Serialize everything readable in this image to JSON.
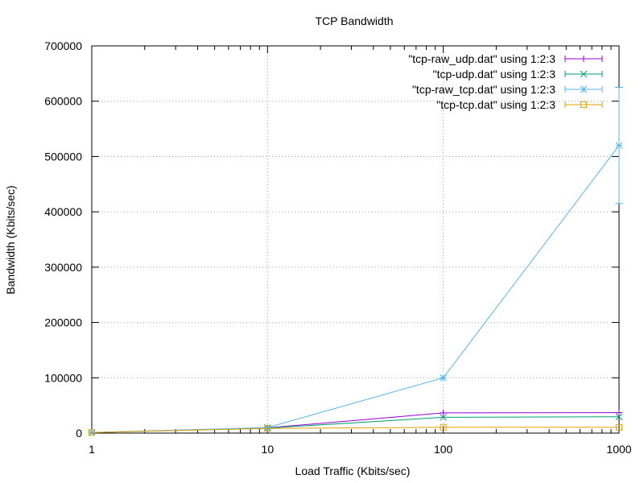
{
  "chart_data": {
    "type": "line",
    "title": "TCP Bandwidth",
    "xlabel": "Load Traffic (Kbits/sec)",
    "ylabel": "Bandwidth (Kbits/sec)",
    "xscale": "log",
    "xlim": [
      1,
      1000
    ],
    "ylim": [
      0,
      700000
    ],
    "xticks": [
      1,
      10,
      100,
      1000
    ],
    "xtick_labels": [
      "1",
      "10",
      "100",
      "1000"
    ],
    "yticks": [
      0,
      100000,
      200000,
      300000,
      400000,
      500000,
      600000,
      700000
    ],
    "ytick_labels": [
      "0",
      "100000",
      "200000",
      "300000",
      "400000",
      "500000",
      "600000",
      "700000"
    ],
    "grid": true,
    "legend_position": "top-right",
    "series": [
      {
        "name": "\"tcp-raw_udp.dat\" using 1:2:3",
        "color": "#9400d3",
        "marker": "plus",
        "x": [
          1,
          10,
          100,
          1000
        ],
        "y": [
          1000,
          9500,
          36500,
          37000
        ],
        "err": [
          0,
          0,
          0,
          0
        ]
      },
      {
        "name": "\"tcp-udp.dat\" using 1:2:3",
        "color": "#009e73",
        "marker": "cross",
        "x": [
          1,
          10,
          100,
          1000
        ],
        "y": [
          1000,
          9000,
          28500,
          29500
        ],
        "err": [
          0,
          0,
          0,
          0
        ]
      },
      {
        "name": "\"tcp-raw_tcp.dat\" using 1:2:3",
        "color": "#56b4e9",
        "marker": "star",
        "x": [
          1,
          10,
          100,
          1000
        ],
        "y": [
          1000,
          10000,
          100000,
          520000
        ],
        "err": [
          0,
          0,
          0,
          105000
        ]
      },
      {
        "name": "\"tcp-tcp.dat\" using 1:2:3",
        "color": "#e69f00",
        "marker": "square",
        "x": [
          1,
          10,
          100,
          1000
        ],
        "y": [
          1000,
          8500,
          10500,
          10500
        ],
        "err": [
          0,
          0,
          0,
          0
        ]
      }
    ]
  }
}
